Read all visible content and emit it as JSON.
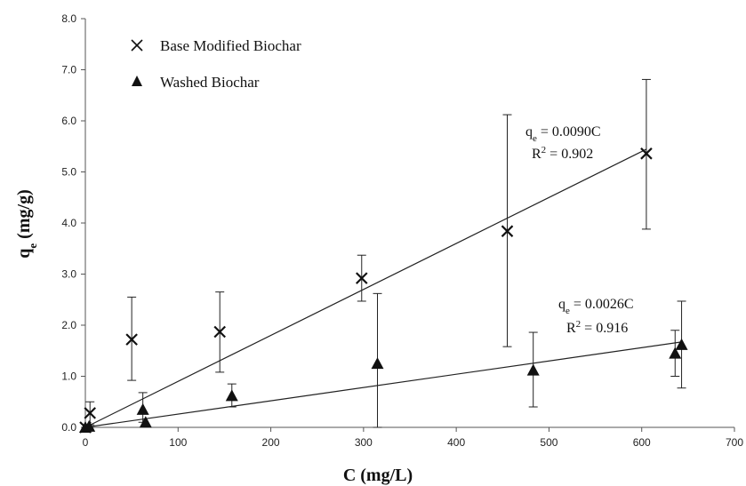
{
  "chart_data": {
    "type": "scatter",
    "xlabel": "C (mg/L)",
    "ylabel": "qe (mg/g)",
    "xlim": [
      0,
      700
    ],
    "ylim": [
      0,
      8.0
    ],
    "x_ticks": [
      "0",
      "100",
      "200",
      "300",
      "400",
      "500",
      "600",
      "700"
    ],
    "y_ticks": [
      "0.0",
      "1.0",
      "2.0",
      "3.0",
      "4.0",
      "5.0",
      "6.0",
      "7.0",
      "8.0"
    ],
    "legend_position": "top-left",
    "grid": false,
    "series": [
      {
        "name": "Base Modified Biochar",
        "marker": "x",
        "color": "#111111",
        "points": [
          {
            "x": 0,
            "y": 0.0
          },
          {
            "x": 5,
            "y": 0.28,
            "err_low": 0.05,
            "err_high": 0.5
          },
          {
            "x": 50,
            "y": 1.72,
            "err_low": 0.92,
            "err_high": 2.55
          },
          {
            "x": 145,
            "y": 1.87,
            "err_low": 1.08,
            "err_high": 2.65
          },
          {
            "x": 298,
            "y": 2.92,
            "err_low": 2.47,
            "err_high": 3.37
          },
          {
            "x": 455,
            "y": 3.84,
            "err_low": 1.58,
            "err_high": 6.12
          },
          {
            "x": 605,
            "y": 5.36,
            "err_low": 3.88,
            "err_high": 6.81
          }
        ],
        "fit": {
          "slope": 0.009,
          "x_start": 0,
          "x_end": 605
        },
        "equation": "qe = 0.0090C",
        "r2": "R2 = 0.902"
      },
      {
        "name": "Washed Biochar",
        "marker": "triangle",
        "color": "#111111",
        "points": [
          {
            "x": 0,
            "y": 0.0
          },
          {
            "x": 4,
            "y": 0.02
          },
          {
            "x": 62,
            "y": 0.35,
            "err_low": 0.1,
            "err_high": 0.68
          },
          {
            "x": 65,
            "y": 0.1
          },
          {
            "x": 158,
            "y": 0.62,
            "err_low": 0.4,
            "err_high": 0.85
          },
          {
            "x": 315,
            "y": 1.25,
            "err_low": 0.0,
            "err_high": 2.62
          },
          {
            "x": 483,
            "y": 1.12,
            "err_low": 0.4,
            "err_high": 1.86
          },
          {
            "x": 636,
            "y": 1.45,
            "err_low": 1.0,
            "err_high": 1.9
          },
          {
            "x": 643,
            "y": 1.62,
            "err_low": 0.77,
            "err_high": 2.47
          }
        ],
        "fit": {
          "slope": 0.0026,
          "x_start": 0,
          "x_end": 643
        },
        "equation": "qe = 0.0026C",
        "r2": "R2 = 0.916"
      }
    ]
  }
}
